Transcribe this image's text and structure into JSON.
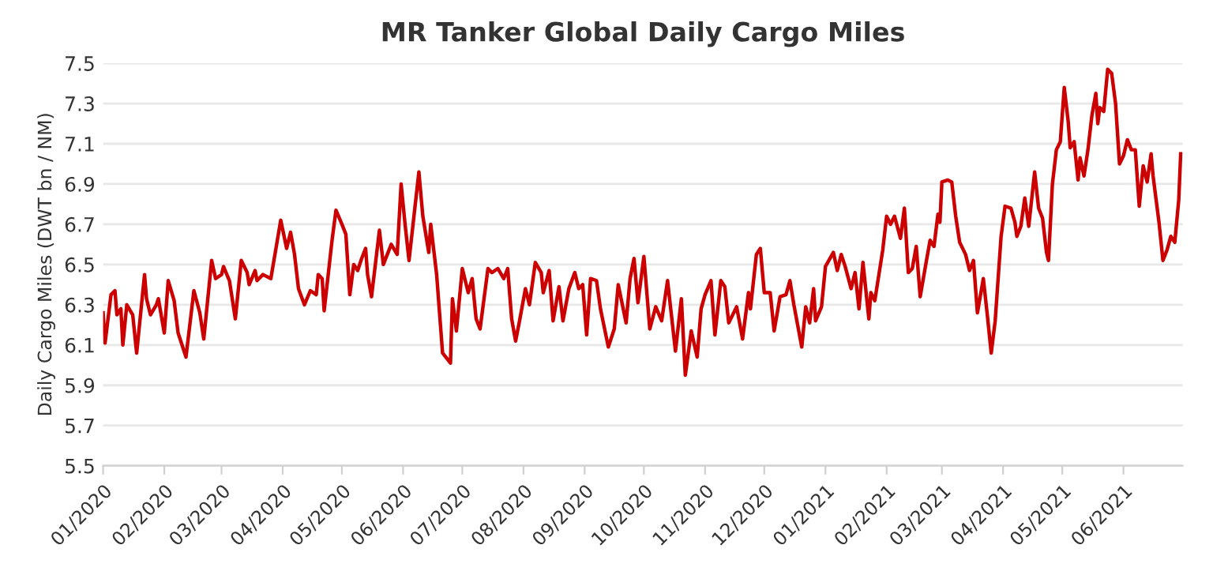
{
  "chart_data": {
    "type": "line",
    "title": "MR Tanker Global Daily Cargo Miles",
    "ylabel": "Daily Cargo Miles (DWT bn / NM)",
    "x": [
      "2020-01-01",
      "2020-01-02",
      "2020-01-05",
      "2020-01-07",
      "2020-01-08",
      "2020-01-10",
      "2020-01-11",
      "2020-01-13",
      "2020-01-16",
      "2020-01-18",
      "2020-01-22",
      "2020-01-23",
      "2020-01-25",
      "2020-01-28",
      "2020-01-29",
      "2020-02-01",
      "2020-02-03",
      "2020-02-06",
      "2020-02-08",
      "2020-02-12",
      "2020-02-16",
      "2020-02-19",
      "2020-02-21",
      "2020-02-25",
      "2020-02-27",
      "2020-03-01",
      "2020-03-02",
      "2020-03-05",
      "2020-03-08",
      "2020-03-11",
      "2020-03-14",
      "2020-03-15",
      "2020-03-18",
      "2020-03-19",
      "2020-03-22",
      "2020-03-26",
      "2020-03-31",
      "2020-04-03",
      "2020-04-05",
      "2020-04-07",
      "2020-04-09",
      "2020-04-12",
      "2020-04-15",
      "2020-04-18",
      "2020-04-19",
      "2020-04-21",
      "2020-04-22",
      "2020-04-26",
      "2020-04-28",
      "2020-05-01",
      "2020-05-03",
      "2020-05-05",
      "2020-05-07",
      "2020-05-09",
      "2020-05-11",
      "2020-05-13",
      "2020-05-14",
      "2020-05-16",
      "2020-05-20",
      "2020-05-22",
      "2020-05-26",
      "2020-05-29",
      "2020-05-31",
      "2020-06-02",
      "2020-06-04",
      "2020-06-09",
      "2020-06-11",
      "2020-06-14",
      "2020-06-15",
      "2020-06-18",
      "2020-06-21",
      "2020-06-25",
      "2020-06-26",
      "2020-06-28",
      "2020-07-01",
      "2020-07-04",
      "2020-07-06",
      "2020-07-08",
      "2020-07-10",
      "2020-07-14",
      "2020-07-16",
      "2020-07-19",
      "2020-07-22",
      "2020-07-24",
      "2020-07-26",
      "2020-07-28",
      "2020-07-30",
      "2020-08-02",
      "2020-08-04",
      "2020-08-07",
      "2020-08-10",
      "2020-08-11",
      "2020-08-14",
      "2020-08-16",
      "2020-08-19",
      "2020-08-21",
      "2020-08-24",
      "2020-08-27",
      "2020-08-29",
      "2020-08-31",
      "2020-09-02",
      "2020-09-04",
      "2020-09-07",
      "2020-09-09",
      "2020-09-13",
      "2020-09-16",
      "2020-09-18",
      "2020-09-22",
      "2020-09-24",
      "2020-09-26",
      "2020-09-28",
      "2020-10-01",
      "2020-10-04",
      "2020-10-07",
      "2020-10-10",
      "2020-10-13",
      "2020-10-17",
      "2020-10-20",
      "2020-10-22",
      "2020-10-25",
      "2020-10-28",
      "2020-10-30",
      "2020-11-01",
      "2020-11-04",
      "2020-11-06",
      "2020-11-09",
      "2020-11-11",
      "2020-11-13",
      "2020-11-17",
      "2020-11-20",
      "2020-11-23",
      "2020-11-24",
      "2020-11-27",
      "2020-11-29",
      "2020-12-01",
      "2020-12-04",
      "2020-12-06",
      "2020-12-09",
      "2020-12-12",
      "2020-12-14",
      "2020-12-16",
      "2020-12-20",
      "2020-12-22",
      "2020-12-24",
      "2020-12-26",
      "2020-12-27",
      "2020-12-30",
      "2021-01-01",
      "2021-01-05",
      "2021-01-07",
      "2021-01-09",
      "2021-01-11",
      "2021-01-14",
      "2021-01-16",
      "2021-01-18",
      "2021-01-20",
      "2021-01-23",
      "2021-01-24",
      "2021-01-26",
      "2021-01-30",
      "2021-02-01",
      "2021-02-03",
      "2021-02-05",
      "2021-02-08",
      "2021-02-10",
      "2021-02-12",
      "2021-02-14",
      "2021-02-16",
      "2021-02-18",
      "2021-02-21",
      "2021-02-23",
      "2021-02-25",
      "2021-02-27",
      "2021-02-28",
      "2021-03-01",
      "2021-03-04",
      "2021-03-06",
      "2021-03-08",
      "2021-03-10",
      "2021-03-13",
      "2021-03-15",
      "2021-03-17",
      "2021-03-19",
      "2021-03-22",
      "2021-03-24",
      "2021-03-26",
      "2021-03-28",
      "2021-03-31",
      "2021-04-02",
      "2021-04-05",
      "2021-04-07",
      "2021-04-08",
      "2021-04-10",
      "2021-04-12",
      "2021-04-14",
      "2021-04-17",
      "2021-04-19",
      "2021-04-21",
      "2021-04-23",
      "2021-04-24",
      "2021-04-26",
      "2021-04-28",
      "2021-04-30",
      "2021-05-02",
      "2021-05-04",
      "2021-05-05",
      "2021-05-07",
      "2021-05-09",
      "2021-05-10",
      "2021-05-12",
      "2021-05-14",
      "2021-05-16",
      "2021-05-18",
      "2021-05-19",
      "2021-05-20",
      "2021-05-22",
      "2021-05-24",
      "2021-05-26",
      "2021-05-28",
      "2021-05-30",
      "2021-06-01",
      "2021-06-03",
      "2021-06-05",
      "2021-06-07",
      "2021-06-09",
      "2021-06-11",
      "2021-06-13",
      "2021-06-15",
      "2021-06-16",
      "2021-06-19",
      "2021-06-21",
      "2021-06-23",
      "2021-06-25",
      "2021-06-27",
      "2021-06-29",
      "2021-06-30"
    ],
    "series": [
      {
        "color": "#cc0000",
        "values": [
          6.26,
          6.11,
          6.35,
          6.37,
          6.25,
          6.28,
          6.1,
          6.3,
          6.25,
          6.06,
          6.45,
          6.33,
          6.25,
          6.3,
          6.33,
          6.16,
          6.42,
          6.32,
          6.16,
          6.04,
          6.37,
          6.26,
          6.13,
          6.52,
          6.43,
          6.45,
          6.49,
          6.42,
          6.23,
          6.52,
          6.46,
          6.4,
          6.47,
          6.42,
          6.45,
          6.43,
          6.72,
          6.58,
          6.66,
          6.55,
          6.38,
          6.3,
          6.37,
          6.35,
          6.45,
          6.43,
          6.27,
          6.62,
          6.77,
          6.7,
          6.65,
          6.35,
          6.5,
          6.47,
          6.53,
          6.58,
          6.45,
          6.34,
          6.67,
          6.5,
          6.6,
          6.55,
          6.9,
          6.7,
          6.52,
          6.96,
          6.74,
          6.56,
          6.7,
          6.45,
          6.06,
          6.01,
          6.33,
          6.17,
          6.48,
          6.36,
          6.43,
          6.23,
          6.18,
          6.48,
          6.46,
          6.48,
          6.43,
          6.48,
          6.23,
          6.12,
          6.22,
          6.38,
          6.3,
          6.51,
          6.46,
          6.36,
          6.47,
          6.22,
          6.39,
          6.22,
          6.38,
          6.46,
          6.38,
          6.4,
          6.15,
          6.43,
          6.42,
          6.28,
          6.09,
          6.18,
          6.4,
          6.21,
          6.43,
          6.53,
          6.31,
          6.54,
          6.18,
          6.29,
          6.22,
          6.42,
          6.07,
          6.33,
          5.95,
          6.17,
          6.04,
          6.28,
          6.35,
          6.42,
          6.15,
          6.42,
          6.39,
          6.21,
          6.29,
          6.13,
          6.36,
          6.28,
          6.55,
          6.58,
          6.36,
          6.36,
          6.17,
          6.34,
          6.35,
          6.42,
          6.3,
          6.09,
          6.29,
          6.21,
          6.38,
          6.22,
          6.29,
          6.49,
          6.56,
          6.47,
          6.55,
          6.49,
          6.38,
          6.46,
          6.28,
          6.51,
          6.23,
          6.36,
          6.32,
          6.57,
          6.74,
          6.7,
          6.74,
          6.63,
          6.78,
          6.46,
          6.48,
          6.59,
          6.34,
          6.51,
          6.62,
          6.59,
          6.75,
          6.71,
          6.91,
          6.92,
          6.91,
          6.74,
          6.61,
          6.55,
          6.47,
          6.52,
          6.26,
          6.43,
          6.25,
          6.06,
          6.22,
          6.64,
          6.79,
          6.78,
          6.71,
          6.64,
          6.69,
          6.83,
          6.69,
          6.96,
          6.78,
          6.73,
          6.56,
          6.52,
          6.9,
          7.07,
          7.11,
          7.38,
          7.21,
          7.08,
          7.11,
          6.92,
          7.03,
          6.94,
          7.07,
          7.24,
          7.35,
          7.2,
          7.28,
          7.26,
          7.47,
          7.45,
          7.3,
          7.0,
          7.04,
          7.12,
          7.07,
          7.07,
          6.79,
          6.99,
          6.91,
          7.05,
          6.94,
          6.71,
          6.52,
          6.57,
          6.64,
          6.61,
          6.82,
          7.05
        ]
      }
    ],
    "xlim": [
      "2020-01-01",
      "2021-07-01"
    ],
    "xticks": [
      {
        "value": "2020-01",
        "label": "01/2020"
      },
      {
        "value": "2020-02",
        "label": "02/2020"
      },
      {
        "value": "2020-03",
        "label": "03/2020"
      },
      {
        "value": "2020-04",
        "label": "04/2020"
      },
      {
        "value": "2020-05",
        "label": "05/2020"
      },
      {
        "value": "2020-06",
        "label": "06/2020"
      },
      {
        "value": "2020-07",
        "label": "07/2020"
      },
      {
        "value": "2020-08",
        "label": "08/2020"
      },
      {
        "value": "2020-09",
        "label": "09/2020"
      },
      {
        "value": "2020-10",
        "label": "10/2020"
      },
      {
        "value": "2020-11",
        "label": "11/2020"
      },
      {
        "value": "2020-12",
        "label": "12/2020"
      },
      {
        "value": "2021-01",
        "label": "01/2021"
      },
      {
        "value": "2021-02",
        "label": "02/2021"
      },
      {
        "value": "2021-03",
        "label": "03/2021"
      },
      {
        "value": "2021-04",
        "label": "04/2021"
      },
      {
        "value": "2021-05",
        "label": "05/2021"
      },
      {
        "value": "2021-06",
        "label": "06/2021"
      }
    ],
    "ylim": [
      5.5,
      7.5
    ],
    "yticks": [
      5.5,
      5.7,
      5.9,
      6.1,
      6.3,
      6.5,
      6.7,
      6.9,
      7.1,
      7.3,
      7.5
    ],
    "grid": "y",
    "marker": "none",
    "line_style": "solid"
  }
}
